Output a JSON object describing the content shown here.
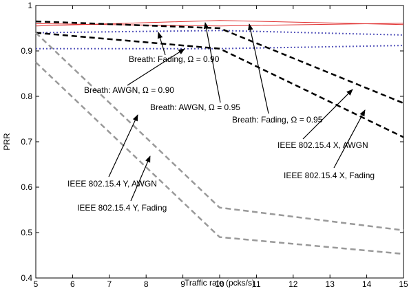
{
  "chart_data": {
    "type": "line",
    "xlabel": "Traffic rate (pcks/s)",
    "ylabel": "PRR",
    "x": [
      5,
      10,
      15
    ],
    "xlim": [
      5,
      15
    ],
    "xticks": [
      5,
      6,
      7,
      8,
      9,
      10,
      11,
      12,
      13,
      14,
      15
    ],
    "ylim": [
      0.4,
      1
    ],
    "yticks": [
      0.4,
      0.5,
      0.6,
      0.7,
      0.8,
      0.9,
      1
    ],
    "series": [
      {
        "name": "Breath: Fading, Ω = 0.90",
        "color": "#5555bb",
        "style": "dotted",
        "values": [
          0.94,
          0.945,
          0.935
        ]
      },
      {
        "name": "Breath: AWGN, Ω = 0.90",
        "color": "#5555bb",
        "style": "dotted",
        "values": [
          0.905,
          0.905,
          0.912
        ]
      },
      {
        "name": "Breath: AWGN, Ω = 0.95",
        "color": "#e03030",
        "style": "solid",
        "values": [
          0.955,
          0.967,
          0.958
        ]
      },
      {
        "name": "Breath: Fading, Ω = 0.95",
        "color": "#e03030",
        "style": "solid",
        "values": [
          0.96,
          0.955,
          0.961
        ]
      },
      {
        "name": "IEEE 802.15.4 X, AWGN",
        "color": "#000000",
        "style": "dashed",
        "values": [
          0.965,
          0.95,
          0.785
        ]
      },
      {
        "name": "IEEE 802.15.4 X, Fading",
        "color": "#000000",
        "style": "dashed",
        "values": [
          0.94,
          0.905,
          0.71
        ]
      },
      {
        "name": "IEEE 802.15.4 Y, AWGN",
        "color": "#999999",
        "style": "dashed",
        "values": [
          0.94,
          0.555,
          0.505
        ]
      },
      {
        "name": "IEEE 802.15.4 Y, Fading",
        "color": "#999999",
        "style": "dashed",
        "values": [
          0.875,
          0.49,
          0.453
        ]
      }
    ]
  }
}
